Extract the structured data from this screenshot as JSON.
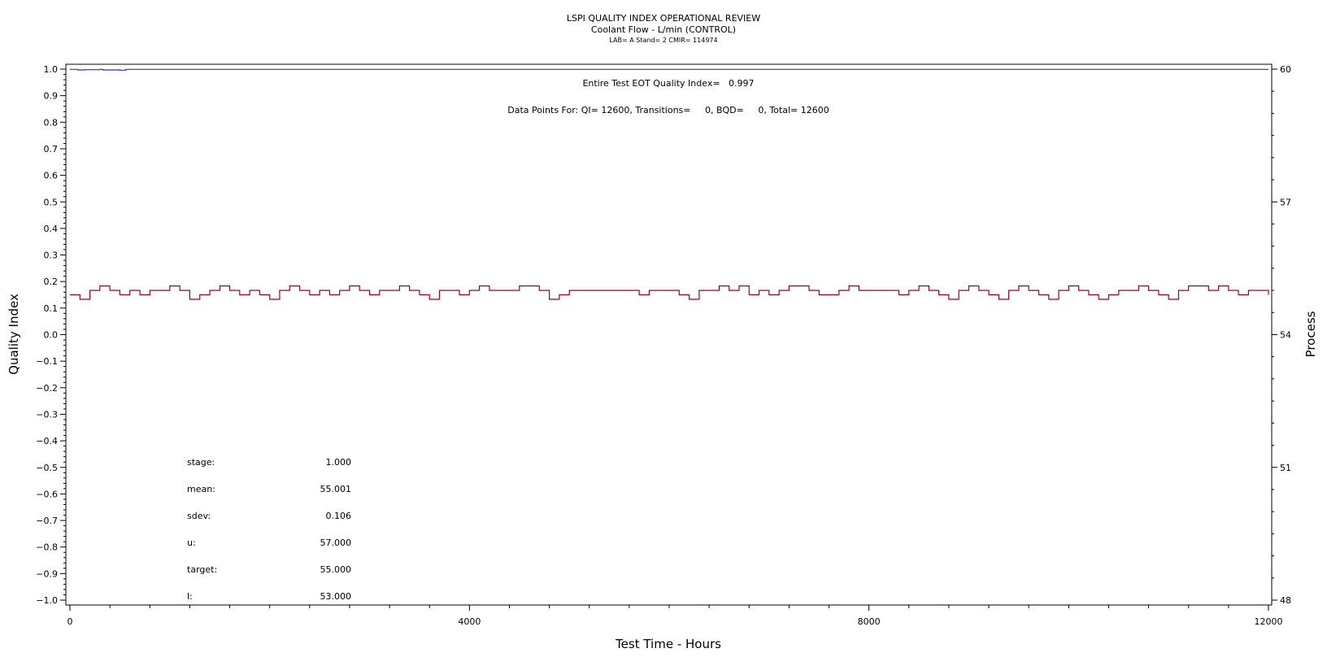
{
  "header": {
    "title": "LSPI QUALITY INDEX OPERATIONAL REVIEW",
    "subtitle": "Coolant Flow - L/min (CONTROL)",
    "info": "LAB= A Stand= 2 CMIR= 114974"
  },
  "annotations": {
    "eot_quality_index": "Entire Test EOT Quality Index=   0.997",
    "data_points": "Data Points For: QI= 12600, Transitions=     0, BQD=     0, Total= 12600"
  },
  "stats": [
    {
      "label": "stage:",
      "value": "1.000"
    },
    {
      "label": "mean:",
      "value": "55.001"
    },
    {
      "label": "sdev:",
      "value": "0.106"
    },
    {
      "label": "u:",
      "value": "57.000"
    },
    {
      "label": "target:",
      "value": "55.000"
    },
    {
      "label": "l:",
      "value": "53.000"
    }
  ],
  "colors": {
    "quality_index_line": "#2b2bd6",
    "process_line": "#a00020",
    "axis": "#000000"
  },
  "chart_data": {
    "type": "line",
    "xlabel": "Test Time - Hours",
    "ylabel": "Quality Index",
    "y2label": "Process",
    "xlim": [
      0,
      12000
    ],
    "ylim": [
      -1.0,
      1.0
    ],
    "y2lim": [
      48,
      60
    ],
    "x_ticks": [
      0,
      4000,
      8000,
      12000
    ],
    "y_ticks": [
      "1.0",
      "0.9",
      "0.8",
      "0.7",
      "0.6",
      "0.5",
      "0.4",
      "0.3",
      "0.2",
      "0.1",
      "0.0",
      "-0.1",
      "-0.2",
      "-0.3",
      "-0.4",
      "-0.5",
      "-0.6",
      "-0.7",
      "-0.8",
      "-0.9",
      "-1.0"
    ],
    "y2_ticks": [
      60,
      57,
      54,
      51,
      48
    ],
    "grid": false,
    "series": [
      {
        "axis": "left",
        "x": [
          0,
          80,
          150,
          300,
          330,
          500,
          560,
          12000
        ],
        "y": [
          0.999,
          0.997,
          0.998,
          0.999,
          0.997,
          0.996,
          0.999,
          0.999
        ]
      },
      {
        "axis": "right",
        "x": [
          0,
          100,
          200,
          300,
          400,
          500,
          600,
          700,
          800,
          900,
          1000,
          1100,
          1200,
          1300,
          1400,
          1500,
          1600,
          1700,
          1800,
          1900,
          2000,
          2100,
          2200,
          2300,
          2400,
          2500,
          2600,
          2700,
          2800,
          2900,
          3000,
          3100,
          3200,
          3300,
          3400,
          3500,
          3600,
          3700,
          3800,
          3900,
          4000,
          4100,
          4200,
          4300,
          4400,
          4500,
          4600,
          4700,
          4800,
          4900,
          5000,
          5100,
          5200,
          5300,
          5400,
          5500,
          5600,
          5700,
          5800,
          5900,
          6000,
          6100,
          6200,
          6300,
          6400,
          6500,
          6600,
          6700,
          6800,
          6900,
          7000,
          7100,
          7200,
          7300,
          7400,
          7500,
          7600,
          7700,
          7800,
          7900,
          8000,
          8100,
          8200,
          8300,
          8400,
          8500,
          8600,
          8700,
          8800,
          8900,
          9000,
          9100,
          9200,
          9300,
          9400,
          9500,
          9600,
          9700,
          9800,
          9900,
          10000,
          10100,
          10200,
          10300,
          10400,
          10500,
          10600,
          10700,
          10800,
          10900,
          11000,
          11100,
          11200,
          11300,
          11400,
          11500,
          11600,
          11700,
          11800,
          11900,
          12000
        ],
        "y": [
          54.9,
          54.8,
          55.0,
          55.1,
          55.0,
          54.9,
          55.0,
          54.9,
          55.0,
          55.0,
          55.1,
          55.0,
          54.8,
          54.9,
          55.0,
          55.1,
          55.0,
          54.9,
          55.0,
          54.9,
          54.8,
          55.0,
          55.1,
          55.0,
          54.9,
          55.0,
          54.9,
          55.0,
          55.1,
          55.0,
          54.9,
          55.0,
          55.0,
          55.1,
          55.0,
          54.9,
          54.8,
          55.0,
          55.0,
          54.9,
          55.0,
          55.1,
          55.0,
          55.0,
          55.0,
          55.1,
          55.1,
          55.0,
          54.8,
          54.9,
          55.0,
          55.0,
          55.0,
          55.0,
          55.0,
          55.0,
          55.0,
          54.9,
          55.0,
          55.0,
          55.0,
          54.9,
          54.8,
          55.0,
          55.0,
          55.1,
          55.0,
          55.1,
          54.9,
          55.0,
          54.9,
          55.0,
          55.1,
          55.1,
          55.0,
          54.9,
          54.9,
          55.0,
          55.1,
          55.0,
          55.0,
          55.0,
          55.0,
          54.9,
          55.0,
          55.1,
          55.0,
          54.9,
          54.8,
          55.0,
          55.1,
          55.0,
          54.9,
          54.8,
          55.0,
          55.1,
          55.0,
          54.9,
          54.8,
          55.0,
          55.1,
          55.0,
          54.9,
          54.8,
          54.9,
          55.0,
          55.0,
          55.1,
          55.0,
          54.9,
          54.8,
          55.0,
          55.1,
          55.1,
          55.0,
          55.1,
          55.0,
          54.9,
          55.0,
          55.0,
          54.9
        ]
      }
    ]
  }
}
